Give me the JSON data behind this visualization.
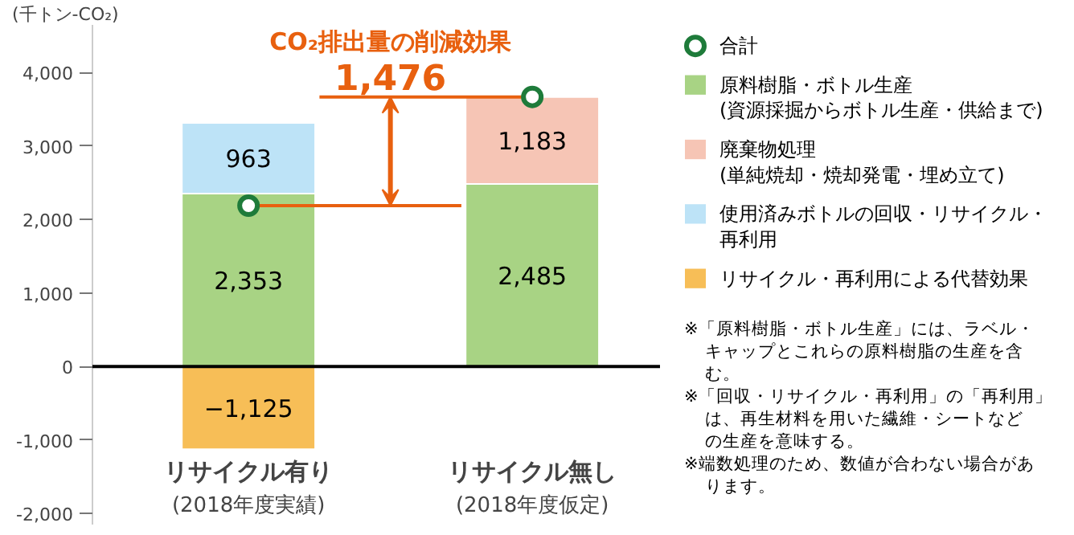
{
  "chart_data": {
    "type": "bar",
    "stacked": true,
    "ylabel": "(千トン-CO₂)",
    "categories": [
      "リサイクル有り(2018年度実績)",
      "リサイクル無し(2018年度仮定)"
    ],
    "series": [
      {
        "name": "合計",
        "type": "scatter",
        "color": "#1e7b3a",
        "values": [
          2190,
          3670
        ]
      },
      {
        "name": "原料樹脂・ボトル生産(資源採掘からボトル生産・供給まで)",
        "color": "#a8d384",
        "values": [
          2353,
          2485
        ],
        "value_labels": [
          "2,353",
          "2,485"
        ]
      },
      {
        "name": "廃棄物処理(単純焼却・焼却発電・埋め立て)",
        "color": "#f6c5b5",
        "values": [
          null,
          1183
        ],
        "value_labels": [
          null,
          "1,183"
        ]
      },
      {
        "name": "使用済みボトルの回収・リサイクル・再利用",
        "color": "#bde3f7",
        "values": [
          963,
          null
        ],
        "value_labels": [
          "963",
          null
        ]
      },
      {
        "name": "リサイクル・再利用による代替効果",
        "color": "#f7be57",
        "values": [
          -1125,
          null
        ],
        "value_labels": [
          "−1,125",
          null
        ]
      }
    ],
    "ylim": [
      -2150,
      4650
    ],
    "yticks": [
      {
        "value": -2000,
        "label": "-2,000"
      },
      {
        "value": -1000,
        "label": "-1,000"
      },
      0,
      {
        "value": 1000,
        "label": "1,000"
      },
      {
        "value": 2000,
        "label": "2,000"
      },
      {
        "value": 3000,
        "label": "3,000"
      },
      {
        "value": 4000,
        "label": "4,000"
      }
    ],
    "ref_lines": [
      {
        "axis": "y",
        "value": 0,
        "color": "#000000"
      },
      {
        "axis": "y",
        "value": 2190,
        "color": "#e8600f"
      },
      {
        "axis": "y",
        "value": 3670,
        "color": "#e8600f"
      }
    ],
    "legend": "right",
    "marker": "circle",
    "annotations": [
      "CO₂排出量の削減効果",
      {
        "text": "1,476",
        "y": 3670
      },
      "※「原料樹脂・ボトル生産」には、ラベル・キャップとこれらの原料樹脂の生産を含む。",
      "※「回収・リサイクル・再利用」の「再利用」は、再生材料を用いた繊維・シートなどの生産を意味する。",
      "※端数処理のため、数値が合わない場合があります。"
    ]
  }
}
